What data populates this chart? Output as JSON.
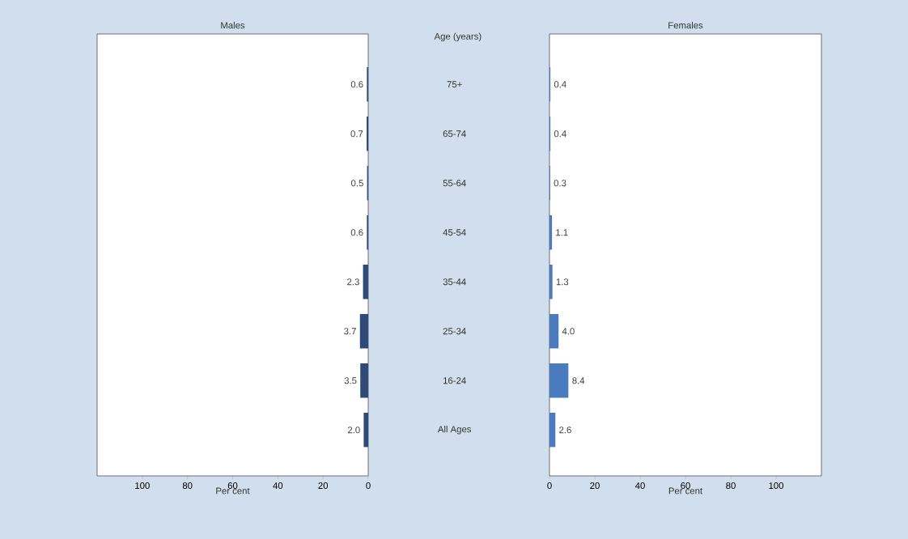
{
  "chart_data": [
    {
      "type": "bar",
      "title": "Males",
      "xlabel": "Per cent",
      "ylabel": "Age (years)",
      "orientation": "horizontal",
      "categories": [
        "75+",
        "65-74",
        "55-64",
        "45-54",
        "35-44",
        "25-34",
        "16-24",
        "All Ages"
      ],
      "values": [
        0.6,
        0.7,
        0.5,
        0.6,
        2.3,
        3.7,
        3.5,
        2.0
      ],
      "value_labels": [
        "0.6",
        "0.7",
        "0.5",
        "0.6",
        "2.3",
        "3.7",
        "3.5",
        "2.0"
      ],
      "color": "#2e4a78",
      "xlim": [
        120,
        0
      ],
      "xticks": [
        100,
        80,
        60,
        40,
        20,
        0
      ]
    },
    {
      "type": "bar",
      "title": "Females",
      "xlabel": "Per cent",
      "orientation": "horizontal",
      "categories": [
        null,
        null,
        null,
        null,
        null,
        null,
        null,
        null
      ],
      "values": [
        0.4,
        0.4,
        0.3,
        1.1,
        1.3,
        4.0,
        8.4,
        2.6
      ],
      "value_labels": [
        "0.4",
        "0.4",
        "0.3",
        "1.1",
        "1.3",
        "4.0",
        "8.4",
        "2.6"
      ],
      "color": "#4a7bbf",
      "xlim": [
        0,
        120
      ],
      "xticks": [
        0,
        20,
        40,
        60,
        80,
        100
      ],
      "tick_labels": "x"
    }
  ]
}
